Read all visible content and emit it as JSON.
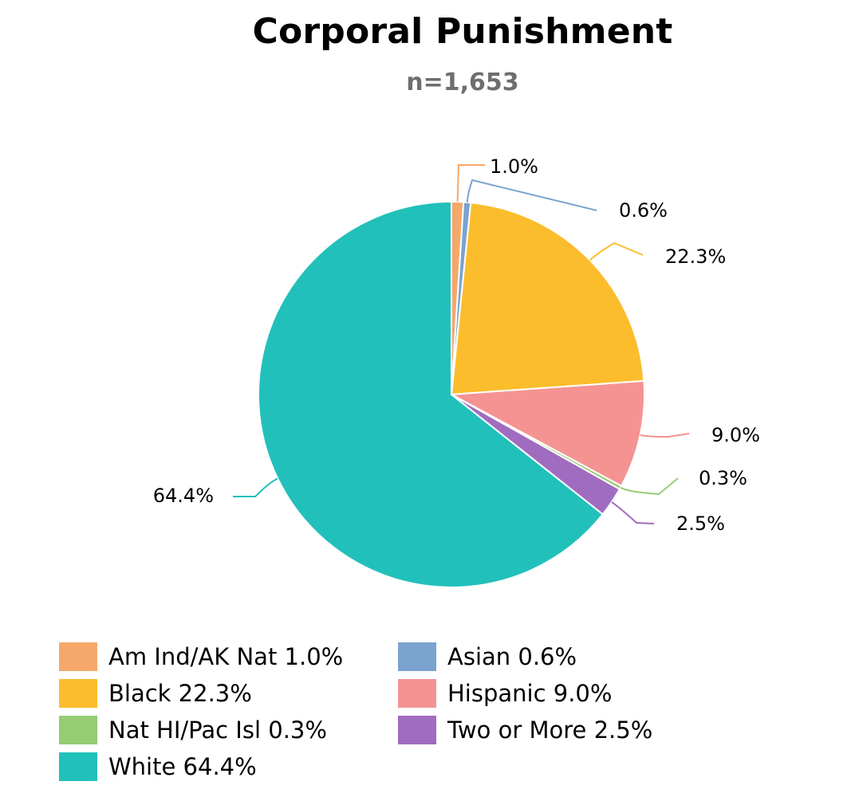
{
  "chart_data": {
    "type": "pie",
    "title": "Corporal Punishment",
    "subtitle": "n=1,653",
    "legend_position": "bottom",
    "slices": [
      {
        "name": "Am Ind/AK Nat",
        "value": 1.0,
        "label": "1.0%",
        "legend": "Am Ind/AK Nat 1.0%",
        "color": "#f5a86a"
      },
      {
        "name": "Asian",
        "value": 0.6,
        "label": "0.6%",
        "legend": "Asian 0.6%",
        "color": "#7ba3cf"
      },
      {
        "name": "Black",
        "value": 22.3,
        "label": "22.3%",
        "legend": "Black 22.3%",
        "color": "#fbbd2c"
      },
      {
        "name": "Hispanic",
        "value": 9.0,
        "label": "9.0%",
        "legend": "Hispanic 9.0%",
        "color": "#f59393"
      },
      {
        "name": "Nat HI/Pac Isl",
        "value": 0.3,
        "label": "0.3%",
        "legend": "Nat HI/Pac Isl 0.3%",
        "color": "#95cc74"
      },
      {
        "name": "Two or More",
        "value": 2.5,
        "label": "2.5%",
        "legend": "Two or More 2.5%",
        "color": "#a06cc0"
      },
      {
        "name": "White",
        "value": 64.4,
        "label": "64.4%",
        "legend": "White 64.4%",
        "color": "#22c0bb"
      }
    ],
    "legend_order": [
      0,
      1,
      2,
      3,
      4,
      5,
      6
    ]
  }
}
